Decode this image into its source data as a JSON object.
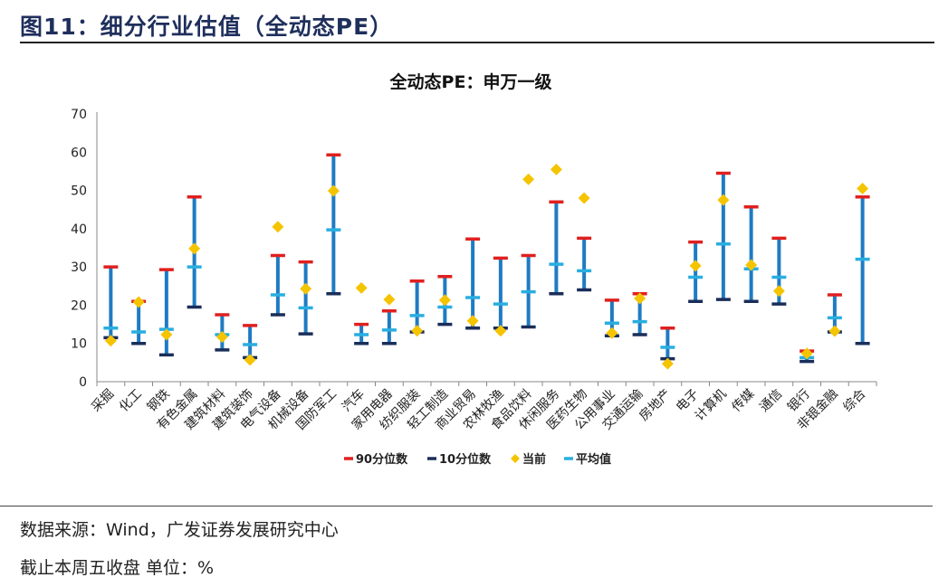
{
  "header": {
    "figure_title": "图11：细分行业估值（全动态PE）"
  },
  "footer": {
    "source": "数据来源：Wind，广发证券发展研究中心",
    "note": "截止本周五收盘 单位：%"
  },
  "colors": {
    "p90": "#e0201f",
    "p10": "#1a2e5a",
    "current": "#f5c400",
    "mean": "#29aee0",
    "range_bar": "#1f7bc2",
    "header_text": "#1f2f5c"
  },
  "chart_data": {
    "type": "range-marker",
    "title": "全动态PE：申万一级",
    "ylim": [
      0,
      70
    ],
    "yticks": [
      0,
      10,
      20,
      30,
      40,
      50,
      60,
      70
    ],
    "legend_position": "bottom",
    "categories": [
      "采掘",
      "化工",
      "钢铁",
      "有色金属",
      "建筑材料",
      "建筑装饰",
      "电气设备",
      "机械设备",
      "国防军工",
      "汽车",
      "家用电器",
      "纺织服装",
      "轻工制造",
      "商业贸易",
      "农林牧渔",
      "食品饮料",
      "休闲服务",
      "医药生物",
      "公用事业",
      "交通运输",
      "房地产",
      "电子",
      "计算机",
      "传媒",
      "通信",
      "银行",
      "非银金融",
      "综合"
    ],
    "series": [
      {
        "name": "90分位数",
        "values": [
          30,
          21,
          29.3,
          48.3,
          17.5,
          14.7,
          33,
          31.3,
          59.3,
          15,
          18.5,
          26.3,
          27.5,
          37.3,
          32.3,
          33,
          47,
          37.5,
          21.3,
          23,
          14,
          36.5,
          54.5,
          45.7,
          37.5,
          8,
          22.7,
          48.3
        ]
      },
      {
        "name": "10分位数",
        "values": [
          11.5,
          10,
          7,
          19.5,
          8.3,
          6.3,
          17.5,
          12.5,
          23,
          10,
          10,
          13,
          15,
          14,
          14,
          14.3,
          23,
          24,
          12,
          12.3,
          6,
          21,
          21.5,
          21,
          20.3,
          5.3,
          13,
          10
        ]
      },
      {
        "name": "当前",
        "values": [
          10.7,
          20.8,
          12.3,
          34.8,
          11.7,
          5.7,
          40.5,
          24.3,
          49.9,
          24.5,
          21.5,
          13.3,
          21.3,
          15.9,
          13.3,
          52.9,
          55.5,
          48,
          12.7,
          21.8,
          4.7,
          30.3,
          47.5,
          30.5,
          23.7,
          7.4,
          13.2,
          50.5
        ]
      },
      {
        "name": "平均值",
        "values": [
          14,
          13,
          13.7,
          30,
          12.3,
          9.7,
          22.7,
          19.3,
          39.7,
          12.3,
          13.5,
          17.3,
          19.5,
          22,
          20.3,
          23.5,
          30.7,
          29,
          15.3,
          15.7,
          9,
          27.3,
          36,
          29.5,
          27.3,
          6.3,
          16.7,
          32
        ]
      }
    ]
  }
}
